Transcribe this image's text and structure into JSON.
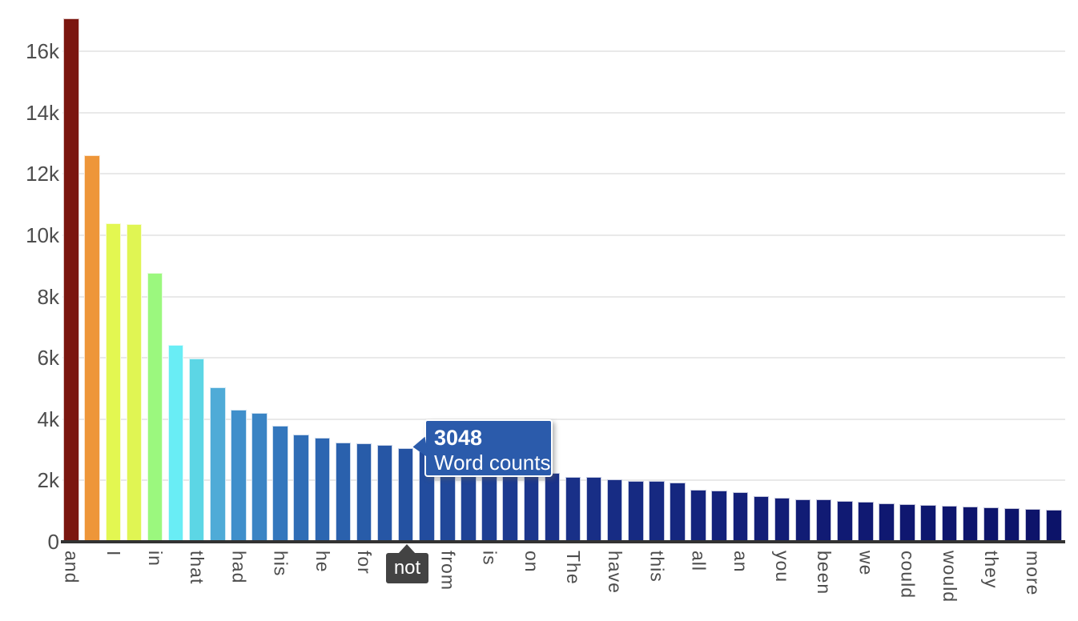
{
  "colors": {
    "background": "#FFFFFF",
    "grid_line": "#E9E9E9",
    "axis_line": "#333333",
    "tick_label": "#4D4D4D",
    "bar_border": "#FFFFFF",
    "tooltip_bg": "#2B5BAB",
    "tooltip_text": "#FFFFFF",
    "highlight_bg": "#434343",
    "highlight_text": "#FFFFFF"
  },
  "chart_data": {
    "type": "bar",
    "title": "",
    "xlabel": "",
    "ylabel": "",
    "series_name": "Word counts",
    "legend": "none",
    "grid": true,
    "x_label_rotation": 90,
    "ylim": [
      0,
      17400
    ],
    "ytick_labels": [
      "0",
      "2k",
      "4k",
      "6k",
      "8k",
      "10k",
      "12k",
      "14k",
      "16k"
    ],
    "ytick_values": [
      0,
      2000,
      4000,
      6000,
      8000,
      10000,
      12000,
      14000,
      16000
    ],
    "categories": [
      "and",
      "",
      "I",
      "",
      "in",
      "",
      "that",
      "",
      "had",
      "",
      "his",
      "",
      "he",
      "",
      "for",
      "",
      "not",
      "",
      "from",
      "",
      "is",
      "",
      "on",
      "",
      "The",
      "",
      "have",
      "",
      "this",
      "",
      "all",
      "",
      "an",
      "",
      "you",
      "",
      "been",
      "",
      "we",
      "",
      "could",
      "",
      "would",
      "",
      "they",
      "",
      "more",
      ""
    ],
    "values": [
      17080,
      12600,
      10400,
      10370,
      8760,
      6410,
      5970,
      5030,
      4300,
      4200,
      3780,
      3490,
      3390,
      3230,
      3210,
      3150,
      3048,
      2950,
      2850,
      2750,
      2650,
      2500,
      2350,
      2240,
      2120,
      2110,
      2030,
      1980,
      1980,
      1930,
      1690,
      1670,
      1620,
      1490,
      1430,
      1380,
      1380,
      1330,
      1300,
      1250,
      1230,
      1200,
      1170,
      1150,
      1120,
      1100,
      1070,
      1040
    ],
    "bar_colors": [
      "#7B160F",
      "#EE9639",
      "#E3F751",
      "#E0F553",
      "#9BF87E",
      "#69EDF5",
      "#5CD6E5",
      "#4FABD7",
      "#3F8FCB",
      "#3A84C4",
      "#3377BD",
      "#2F6DB6",
      "#2C66B1",
      "#2A61AD",
      "#285CA9",
      "#2656A5",
      "#2452A2",
      "#224C9E",
      "#21489A",
      "#1F4396",
      "#1E3F93",
      "#1C3A90",
      "#1B368D",
      "#1A328A",
      "#193088",
      "#182E86",
      "#172C84",
      "#162A82",
      "#162981",
      "#15277F",
      "#14247D",
      "#13227B",
      "#132079",
      "#121E77",
      "#121D76",
      "#111C75",
      "#111B74",
      "#101A73",
      "#101972",
      "#0F1871",
      "#0F1770",
      "#0E176F",
      "#0E166E",
      "#0E156D",
      "#0D156C",
      "#0D146B",
      "#0D136A",
      "#0C1369"
    ],
    "highlight": {
      "label": "not",
      "index": 16
    },
    "tooltip": {
      "value": "3048",
      "series": "Word counts",
      "index": 16
    }
  }
}
